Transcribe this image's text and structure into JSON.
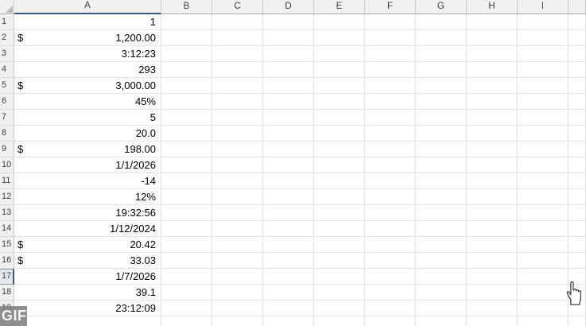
{
  "sheet": {
    "columns": [
      "A",
      "B",
      "C",
      "D",
      "E",
      "F",
      "G",
      "H",
      "I"
    ],
    "active_cell": {
      "column": "A",
      "row": "17"
    },
    "rows": [
      {
        "num": "1",
        "value": "1"
      },
      {
        "num": "2",
        "prefix": "$",
        "value": "1,200.00"
      },
      {
        "num": "3",
        "value": "3:12:23"
      },
      {
        "num": "4",
        "value": "293"
      },
      {
        "num": "5",
        "prefix": "$",
        "value": "3,000.00"
      },
      {
        "num": "6",
        "value": "45%"
      },
      {
        "num": "7",
        "value": "5"
      },
      {
        "num": "8",
        "value": "20.0"
      },
      {
        "num": "9",
        "prefix": "$",
        "value": "198.00"
      },
      {
        "num": "10",
        "value": "1/1/2026"
      },
      {
        "num": "11",
        "value": "-14"
      },
      {
        "num": "12",
        "value": "12%"
      },
      {
        "num": "13",
        "value": "19:32:56"
      },
      {
        "num": "14",
        "value": "1/12/2024"
      },
      {
        "num": "15",
        "prefix": "$",
        "value": "20.42"
      },
      {
        "num": "16",
        "prefix": "$",
        "value": "33.03"
      },
      {
        "num": "17",
        "value": "1/7/2026",
        "selected": true
      },
      {
        "num": "18",
        "value": "39.1"
      },
      {
        "num": "19",
        "value": "23:12:09"
      },
      {
        "num": "",
        "value": ""
      }
    ]
  },
  "watermark": {
    "label": "GIF"
  },
  "cursor": {
    "icon": "hand-pointer-icon"
  },
  "colors": {
    "accent": "#35597F",
    "header_bg": "#F1F1F1",
    "selected_header_bg": "#E3E8ED",
    "gridline": "#E2E2E2",
    "watermark_bg": "#808080",
    "cell_text": "#000000",
    "header_text": "#3F3F3F"
  }
}
